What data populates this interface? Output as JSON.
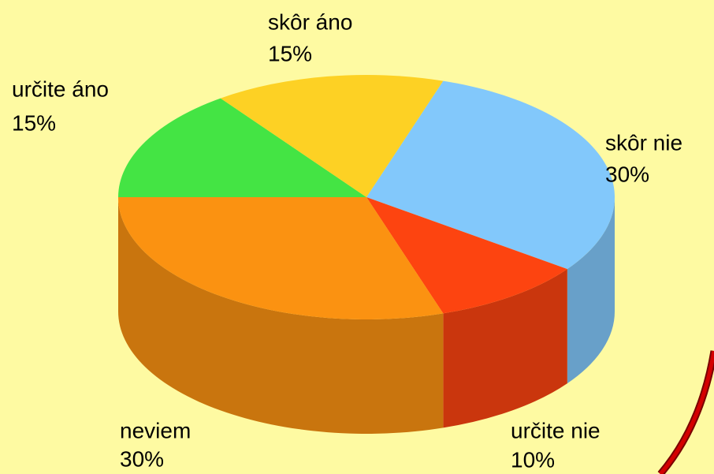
{
  "chart_data": {
    "type": "pie",
    "categories": [
      "skôr nie",
      "určite nie",
      "neviem",
      "určite áno",
      "skôr áno"
    ],
    "values": [
      30,
      10,
      30,
      15,
      15
    ],
    "value_labels": [
      "30%",
      "10%",
      "30%",
      "15%",
      "15%"
    ],
    "colors": [
      "#82c8fb",
      "#fd4410",
      "#fb9211",
      "#44e444",
      "#fdd124"
    ]
  }
}
